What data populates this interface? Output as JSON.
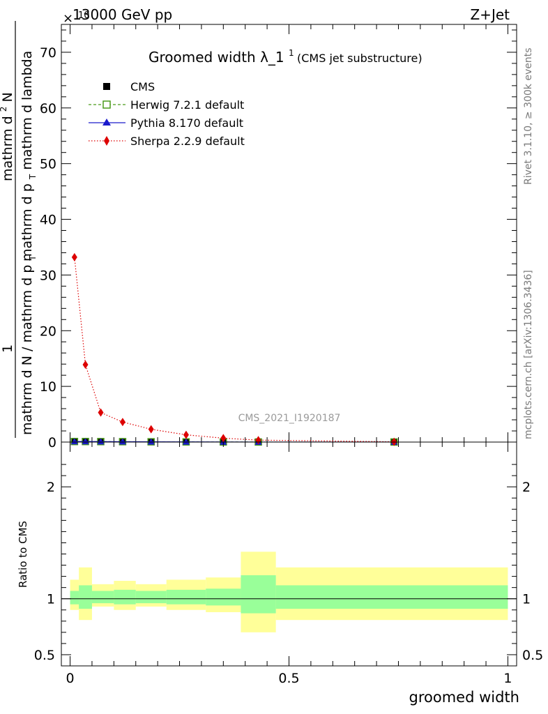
{
  "header": {
    "energy": "13000 GeV pp",
    "process": "Z+Jet",
    "multiplier_prefix": "×",
    "multiplier_exp": "10"
  },
  "side_labels": {
    "rivet": "Rivet 3.1.10, ≥ 300k events",
    "mcplots": "mcplots.cern.ch [arXiv:1306.3436]"
  },
  "chart_data": [
    {
      "type": "line",
      "panel": "main",
      "title": "Groomed width",
      "title_symbol": "λ_1",
      "title_sup": "1",
      "subtitle": "(CMS jet substructure)",
      "watermark": "CMS_2021_I1920187",
      "ylabel_numerator": "1",
      "ylabel_denominator": "mathrm d N / mathrm d p",
      "ylabel_denominator_sub": "T",
      "ylabel_right": "mathrm d",
      "ylabel_right_sup": "2",
      "ylabel_right_rest": "N",
      "ylabel_right_den": "mathrm d p",
      "ylabel_right_den_sub": "T",
      "ylabel_right_den_rest": " mathrm d lambda",
      "ylim": [
        0,
        75
      ],
      "yticks": [
        0,
        10,
        20,
        30,
        40,
        50,
        60,
        70
      ],
      "ytick_labels": [
        "0",
        "10",
        "20",
        "30",
        "40",
        "50",
        "60",
        "70"
      ],
      "xlim": [
        -0.02,
        1.02
      ],
      "legend_position": "top-left",
      "series": [
        {
          "name": "CMS",
          "color": "#000000",
          "marker": "square",
          "x": [
            0.01,
            0.035,
            0.07,
            0.12,
            0.185,
            0.265,
            0.35,
            0.43,
            0.74
          ],
          "values": [
            0.1,
            0.1,
            0.08,
            0.07,
            0.05,
            0.03,
            0.02,
            0.01,
            0.01
          ]
        },
        {
          "name": "Herwig 7.2.1 default",
          "color": "#4a9a1a",
          "marker": "open-square",
          "x": [
            0.01,
            0.035,
            0.07,
            0.12,
            0.185,
            0.265,
            0.35,
            0.43,
            0.74
          ],
          "values": [
            0.1,
            0.1,
            0.08,
            0.07,
            0.05,
            0.03,
            0.02,
            0.01,
            0.01
          ]
        },
        {
          "name": "Pythia 8.170 default",
          "color": "#1a1acc",
          "marker": "triangle",
          "x": [
            0.01,
            0.035,
            0.07,
            0.12,
            0.185,
            0.265,
            0.35,
            0.43,
            0.74
          ],
          "values": [
            0.1,
            0.1,
            0.08,
            0.07,
            0.05,
            0.03,
            0.02,
            0.01,
            0.01
          ]
        },
        {
          "name": "Sherpa 2.2.9 default",
          "color": "#dd0000",
          "marker": "diamond",
          "x": [
            0.01,
            0.035,
            0.07,
            0.12,
            0.185,
            0.265,
            0.35,
            0.43,
            0.74
          ],
          "values": [
            33.2,
            13.9,
            5.3,
            3.6,
            2.3,
            1.3,
            0.7,
            0.35,
            0.05
          ]
        }
      ]
    },
    {
      "type": "area",
      "panel": "ratio",
      "ylabel": "Ratio to CMS",
      "xlabel": "groomed width",
      "ylim": [
        0.4,
        2.4
      ],
      "yticks": [
        0.5,
        1,
        2
      ],
      "ytick_labels": [
        "0.5",
        "1",
        "2"
      ],
      "xlim": [
        -0.02,
        1.02
      ],
      "xticks": [
        0,
        0.5,
        1
      ],
      "xtick_labels": [
        "0",
        "0.5",
        "1"
      ],
      "bin_edges": [
        0,
        0.02,
        0.05,
        0.1,
        0.15,
        0.22,
        0.31,
        0.39,
        0.47,
        1.0
      ],
      "stat_band": {
        "name": "stat",
        "color": "#99ff99",
        "low": [
          0.95,
          0.91,
          0.96,
          0.95,
          0.96,
          0.95,
          0.94,
          0.87,
          0.91
        ],
        "high": [
          1.07,
          1.12,
          1.07,
          1.08,
          1.07,
          1.08,
          1.09,
          1.21,
          1.12
        ]
      },
      "total_band": {
        "name": "stat+syst",
        "color": "#ffff99",
        "low": [
          0.9,
          0.81,
          0.93,
          0.9,
          0.93,
          0.9,
          0.88,
          0.7,
          0.81
        ],
        "high": [
          1.17,
          1.28,
          1.13,
          1.16,
          1.13,
          1.17,
          1.19,
          1.42,
          1.28
        ]
      },
      "reference_line": 1
    }
  ]
}
